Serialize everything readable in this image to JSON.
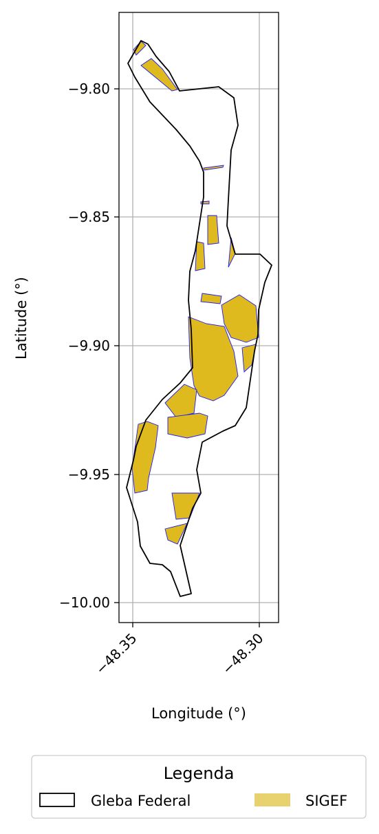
{
  "map": {
    "xlabel": "Longitude (°)",
    "ylabel": "Latitude (°)",
    "x_ticks": [
      "−48.35",
      "−48.30"
    ],
    "y_ticks": [
      "−9.80",
      "−9.85",
      "−9.90",
      "−9.95",
      "−10.00"
    ],
    "xlim": [
      -48.355,
      -48.292
    ],
    "ylim": [
      -10.008,
      -9.772
    ],
    "grid": true,
    "colors": {
      "gleba_edge": "#000000",
      "sigef_fill": "#DFBA1E",
      "sigef_edge": "#1a1aff",
      "grid": "#b0b0b0"
    }
  },
  "legend": {
    "title": "Legenda",
    "items": [
      {
        "label": "Gleba Federal",
        "swatch": "outline"
      },
      {
        "label": "SIGEF",
        "swatch": "fill",
        "color": "#E8D26F"
      }
    ]
  }
}
